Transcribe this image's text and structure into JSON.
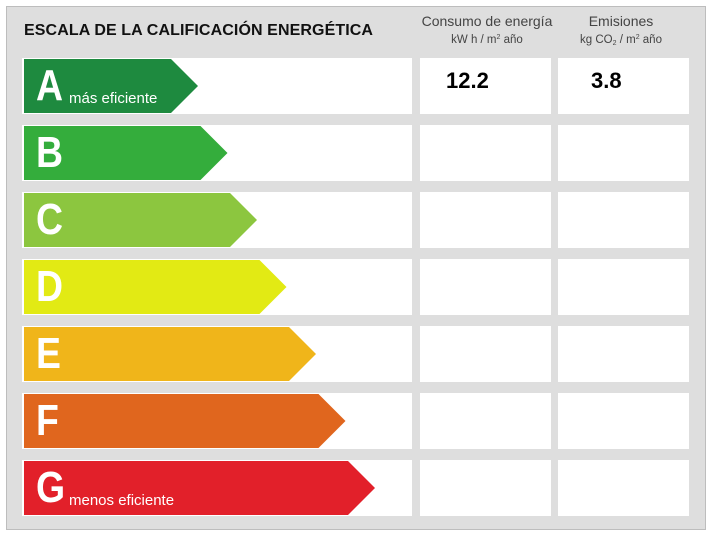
{
  "title": "ESCALA DE LA CALIFICACIÓN ENERGÉTICA",
  "columns": {
    "energy": {
      "title": "Consumo de energía",
      "unit_pre": "kW h / m",
      "unit_sup": "2",
      "unit_post": " año"
    },
    "emissions": {
      "title": "Emisiones",
      "unit_pre": "kg CO",
      "unit_sub": "2",
      "unit_mid": " / m",
      "unit_sup": "2",
      "unit_post": " año"
    }
  },
  "rating": {
    "letter": "A",
    "energy_value": "12.2",
    "emissions_value": "3.8"
  },
  "bands": [
    {
      "letter": "A",
      "label": "más eficiente",
      "color": "#1e8a3f"
    },
    {
      "letter": "B",
      "label": "",
      "color": "#34ad3c"
    },
    {
      "letter": "C",
      "label": "",
      "color": "#8cc63f"
    },
    {
      "letter": "D",
      "label": "",
      "color": "#e2ea14"
    },
    {
      "letter": "E",
      "label": "",
      "color": "#f0b51a"
    },
    {
      "letter": "F",
      "label": "",
      "color": "#e0661e"
    },
    {
      "letter": "G",
      "label": "menos eficiente",
      "color": "#e2202a"
    }
  ]
}
